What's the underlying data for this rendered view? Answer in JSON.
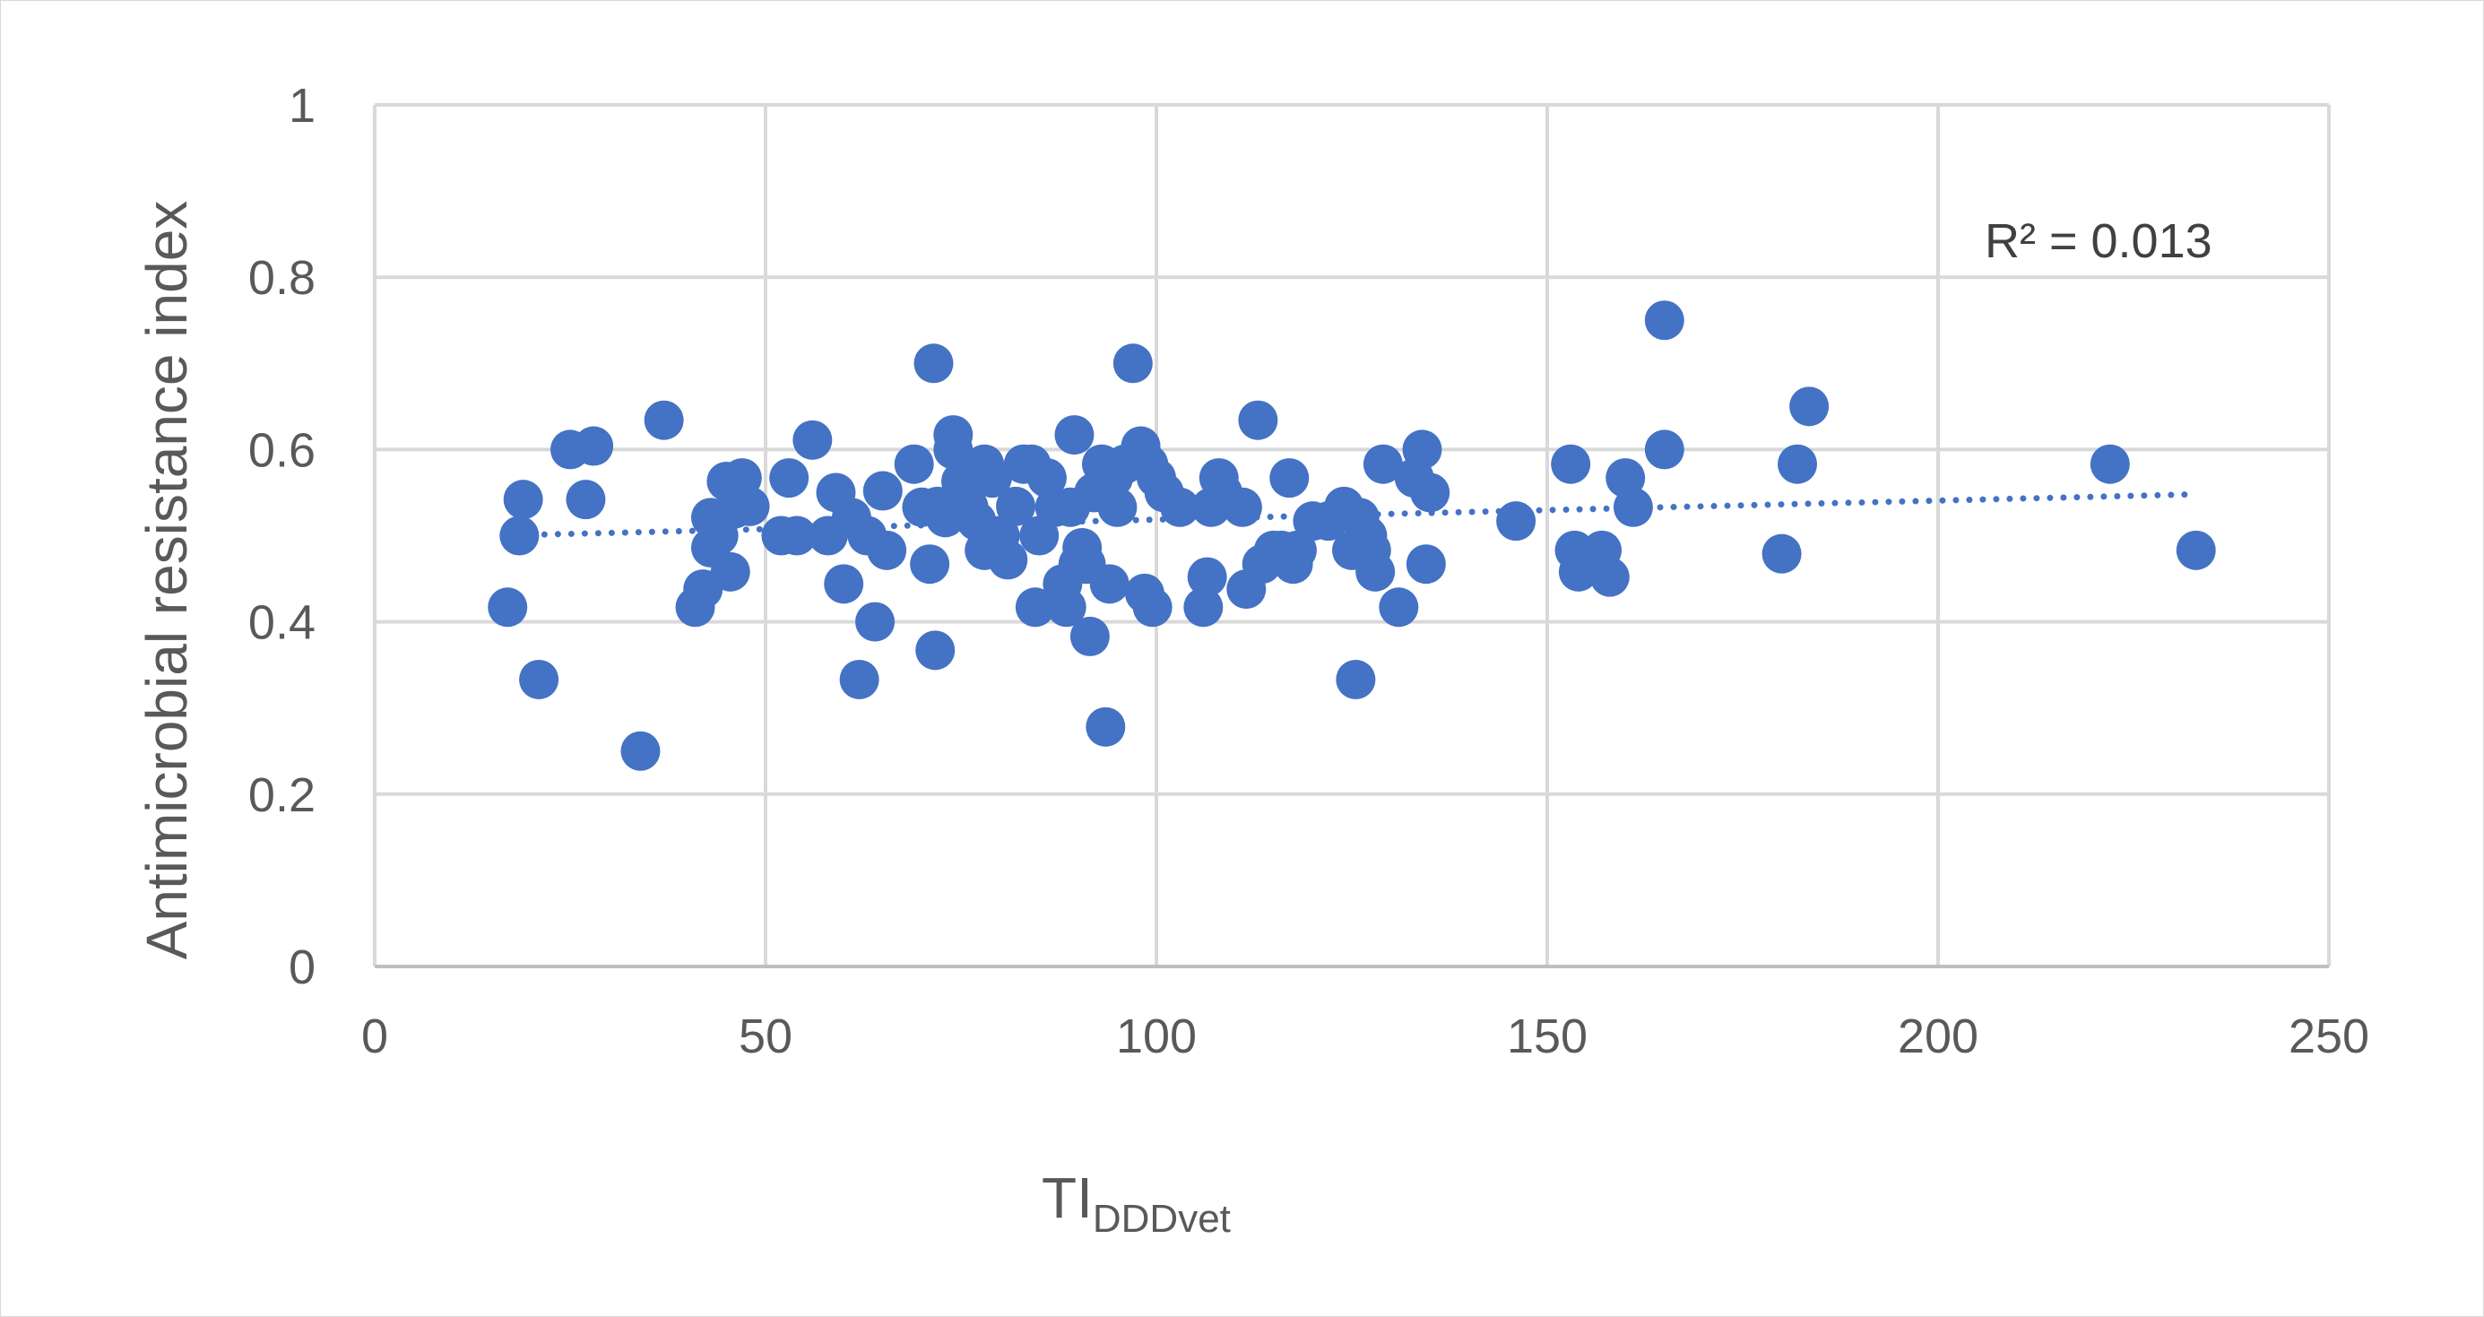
{
  "chart_data": {
    "type": "scatter",
    "xlabel": "TI",
    "xlabel_sub": "DDDvet",
    "ylabel": "Antimicrobial resistance index",
    "xlim": [
      0,
      250
    ],
    "ylim": [
      0,
      1
    ],
    "x_ticks": [
      "0",
      "50",
      "100",
      "150",
      "200",
      "250"
    ],
    "y_ticks": [
      "0",
      "0.2",
      "0.4",
      "0.6",
      "0.8",
      "1"
    ],
    "grid": true,
    "marker_color": "#4472C4",
    "trendline": {
      "type": "linear",
      "style": "dotted",
      "color": "#4472C4",
      "x": [
        20,
        233
      ],
      "y": [
        0.501,
        0.548
      ]
    },
    "annotation": "R² = 0.013",
    "points": [
      [
        17,
        0.417
      ],
      [
        18.5,
        0.5
      ],
      [
        19,
        0.542
      ],
      [
        21,
        0.333
      ],
      [
        25,
        0.6
      ],
      [
        27,
        0.542
      ],
      [
        28,
        0.604
      ],
      [
        34,
        0.25
      ],
      [
        37,
        0.634
      ],
      [
        41,
        0.417
      ],
      [
        42,
        0.438
      ],
      [
        43,
        0.521
      ],
      [
        43,
        0.486
      ],
      [
        44,
        0.5
      ],
      [
        45,
        0.563
      ],
      [
        45.5,
        0.458
      ],
      [
        46,
        0.531
      ],
      [
        47,
        0.567
      ],
      [
        48,
        0.534
      ],
      [
        52,
        0.5
      ],
      [
        53,
        0.567
      ],
      [
        54,
        0.5
      ],
      [
        56,
        0.611
      ],
      [
        58,
        0.5
      ],
      [
        59,
        0.55
      ],
      [
        60,
        0.444
      ],
      [
        61,
        0.521
      ],
      [
        62,
        0.333
      ],
      [
        63,
        0.5
      ],
      [
        64,
        0.4
      ],
      [
        65,
        0.552
      ],
      [
        65.5,
        0.483
      ],
      [
        69,
        0.583
      ],
      [
        70,
        0.533
      ],
      [
        71,
        0.467
      ],
      [
        71.5,
        0.7
      ],
      [
        71.7,
        0.367
      ],
      [
        72,
        0.534
      ],
      [
        73,
        0.521
      ],
      [
        74,
        0.617
      ],
      [
        74,
        0.6
      ],
      [
        75,
        0.563
      ],
      [
        76,
        0.533
      ],
      [
        77,
        0.517
      ],
      [
        78,
        0.583
      ],
      [
        78,
        0.483
      ],
      [
        79,
        0.567
      ],
      [
        80,
        0.5
      ],
      [
        81,
        0.472
      ],
      [
        82,
        0.534
      ],
      [
        83,
        0.583
      ],
      [
        84,
        0.583
      ],
      [
        84.5,
        0.417
      ],
      [
        85,
        0.5
      ],
      [
        86,
        0.567
      ],
      [
        87,
        0.533
      ],
      [
        88,
        0.444
      ],
      [
        88.5,
        0.417
      ],
      [
        89,
        0.533
      ],
      [
        89.5,
        0.617
      ],
      [
        90,
        0.467
      ],
      [
        90.5,
        0.486
      ],
      [
        91,
        0.467
      ],
      [
        91.5,
        0.383
      ],
      [
        92,
        0.55
      ],
      [
        93,
        0.583
      ],
      [
        93.5,
        0.278
      ],
      [
        94,
        0.444
      ],
      [
        94.5,
        0.567
      ],
      [
        95,
        0.533
      ],
      [
        96,
        0.583
      ],
      [
        97,
        0.7
      ],
      [
        98,
        0.604
      ],
      [
        98.5,
        0.433
      ],
      [
        99,
        0.583
      ],
      [
        99.5,
        0.417
      ],
      [
        100,
        0.567
      ],
      [
        101,
        0.55
      ],
      [
        103,
        0.533
      ],
      [
        106,
        0.417
      ],
      [
        106.5,
        0.452
      ],
      [
        107,
        0.533
      ],
      [
        108,
        0.567
      ],
      [
        108.5,
        0.55
      ],
      [
        111,
        0.533
      ],
      [
        111.5,
        0.438
      ],
      [
        113,
        0.634
      ],
      [
        113.5,
        0.467
      ],
      [
        115,
        0.483
      ],
      [
        116,
        0.483
      ],
      [
        117,
        0.567
      ],
      [
        117.5,
        0.467
      ],
      [
        118,
        0.483
      ],
      [
        120,
        0.517
      ],
      [
        122,
        0.517
      ],
      [
        124,
        0.534
      ],
      [
        125,
        0.483
      ],
      [
        125.5,
        0.333
      ],
      [
        126,
        0.521
      ],
      [
        127,
        0.5
      ],
      [
        127.5,
        0.483
      ],
      [
        128,
        0.458
      ],
      [
        129,
        0.583
      ],
      [
        131,
        0.417
      ],
      [
        133,
        0.567
      ],
      [
        134,
        0.6
      ],
      [
        134.5,
        0.467
      ],
      [
        135,
        0.55
      ],
      [
        146,
        0.517
      ],
      [
        153,
        0.583
      ],
      [
        153.5,
        0.483
      ],
      [
        154,
        0.458
      ],
      [
        157,
        0.483
      ],
      [
        158,
        0.452
      ],
      [
        160,
        0.567
      ],
      [
        161,
        0.533
      ],
      [
        165,
        0.75
      ],
      [
        165,
        0.6
      ],
      [
        180,
        0.479
      ],
      [
        182,
        0.583
      ],
      [
        183.5,
        0.65
      ],
      [
        222,
        0.583
      ],
      [
        233,
        0.483
      ]
    ]
  }
}
